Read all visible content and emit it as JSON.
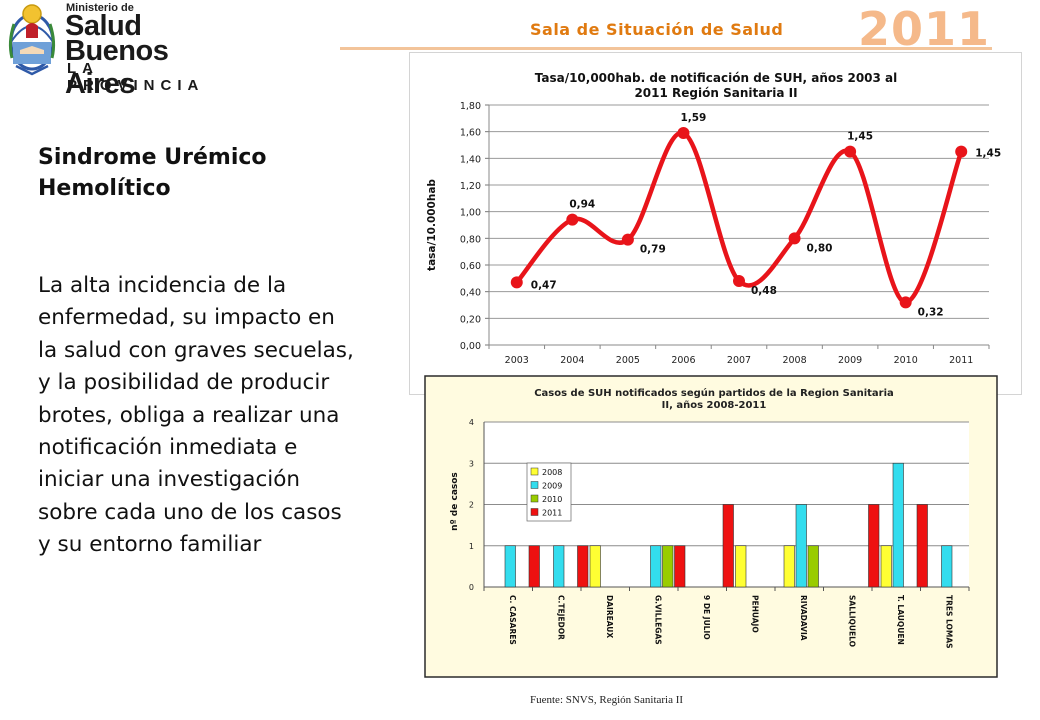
{
  "header": {
    "logo": {
      "ministerio": "Ministerio de",
      "salud": "Salud",
      "buenos_aires": "Buenos Aires",
      "provincia": "LA PROVINCIA"
    },
    "title": "Sala de Situación de Salud",
    "year": "2011"
  },
  "sidebar": {
    "title": "Sindrome Urémico Hemolítico",
    "body": "La alta incidencia de la enfermedad, su impacto en la salud con graves secuelas, y la posibilidad de producir brotes, obliga a realizar una notificación inmediata e iniciar una investigación sobre cada uno de los casos y su entorno familiar"
  },
  "source": "Fuente:  SNVS, Región Sanitaria  II",
  "chart_data": [
    {
      "type": "line",
      "title_lines": [
        "Tasa/10,000hab.  de notificación de SUH, años 2003 al",
        "2011 Región Sanitaria II"
      ],
      "ylabel": "tasa/10.000hab",
      "xlabel": "",
      "x": [
        "2003",
        "2004",
        "2005",
        "2006",
        "2007",
        "2008",
        "2009",
        "2010",
        "2011"
      ],
      "values": [
        0.47,
        0.94,
        0.79,
        1.59,
        0.48,
        0.8,
        1.45,
        0.32,
        1.45
      ],
      "value_labels": [
        "0,47",
        "0,94",
        "0,79",
        "1,59",
        "0,48",
        "0,80",
        "1,45",
        "0,32",
        "1,45"
      ],
      "ylim": [
        0,
        1.8
      ],
      "yticks": [
        "0,00",
        "0,20",
        "0,40",
        "0,60",
        "0,80",
        "1,00",
        "1,20",
        "1,40",
        "1,60",
        "1,80"
      ],
      "grid": true,
      "smooth": true,
      "colors": {
        "line": "#e8141a",
        "grid": "#9a9a9a",
        "background": "#ffffff"
      }
    },
    {
      "type": "bar",
      "title_lines": [
        "Casos de SUH notificados según partidos de la Region Sanitaria",
        "II, años 2008-2011"
      ],
      "ylabel": "nº de casos",
      "xlabel": "",
      "categories": [
        "C. CASARES",
        "C.TEJEDOR",
        "DAIREAUX",
        "G.VILLEGAS",
        "9 DE JULIO",
        "PEHUAJO",
        "RIVADAVIA",
        "SALLIQUELO",
        "T. LAUQUEN",
        "TRES LOMAS"
      ],
      "series": [
        {
          "name": "2008",
          "color": "#ffff33",
          "values": [
            0,
            0,
            1,
            0,
            0,
            1,
            1,
            0,
            1,
            0
          ]
        },
        {
          "name": "2009",
          "color": "#33ddee",
          "values": [
            1,
            1,
            0,
            1,
            0,
            0,
            2,
            0,
            3,
            1
          ]
        },
        {
          "name": "2010",
          "color": "#99cc00",
          "values": [
            0,
            0,
            0,
            1,
            0,
            0,
            1,
            0,
            0,
            0
          ]
        },
        {
          "name": "2011",
          "color": "#ee1111",
          "values": [
            1,
            1,
            0,
            1,
            2,
            0,
            0,
            2,
            2,
            0
          ]
        }
      ],
      "ylim": [
        0,
        4
      ],
      "yticks": [
        "0",
        "1",
        "2",
        "3",
        "4"
      ],
      "grid": true,
      "legend": "left",
      "colors": {
        "background": "#fffbe0",
        "frame": "#2a2a2a"
      }
    }
  ]
}
